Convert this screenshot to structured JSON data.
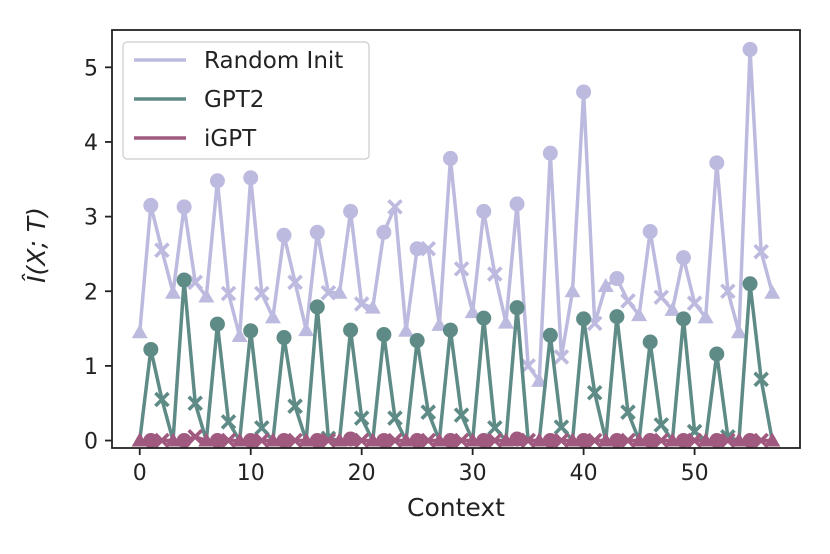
{
  "chart_data": {
    "type": "line",
    "xlabel": "Context",
    "ylabel": "Î(X; T)",
    "xlim": [
      -2.5,
      59.5
    ],
    "ylim": [
      -0.1,
      5.5
    ],
    "xticks": [
      0,
      10,
      20,
      30,
      40,
      50
    ],
    "yticks": [
      0,
      1,
      2,
      3,
      4,
      5
    ],
    "grid": false,
    "legend_position": "top-left",
    "marker_cycle": [
      "triangle",
      "circle",
      "x"
    ],
    "series": [
      {
        "name": "Random Init",
        "color": "#bdbadf",
        "values": [
          1.45,
          3.15,
          2.55,
          1.98,
          3.13,
          2.12,
          1.93,
          3.48,
          1.97,
          1.4,
          3.52,
          1.97,
          1.65,
          2.75,
          2.12,
          1.48,
          2.79,
          1.98,
          1.98,
          3.07,
          1.83,
          1.78,
          2.79,
          3.13,
          1.47,
          2.57,
          2.57,
          1.55,
          3.78,
          2.3,
          1.72,
          3.07,
          2.23,
          1.58,
          3.17,
          1.0,
          0.8,
          3.85,
          1.12,
          2.0,
          4.67,
          1.57,
          2.07,
          2.17,
          1.87,
          1.68,
          2.8,
          1.92,
          1.75,
          2.45,
          1.84,
          1.65,
          3.72,
          2.0,
          1.45,
          5.24,
          2.53,
          1.98
        ]
      },
      {
        "name": "GPT2",
        "color": "#5f8b86",
        "values": [
          0.0,
          1.22,
          0.55,
          0.0,
          2.15,
          0.5,
          0.0,
          1.56,
          0.25,
          0.0,
          1.47,
          0.17,
          0.0,
          1.38,
          0.46,
          0.0,
          1.79,
          0.03,
          0.0,
          1.48,
          0.3,
          0.0,
          1.42,
          0.3,
          0.0,
          1.34,
          0.38,
          0.0,
          1.48,
          0.34,
          0.0,
          1.64,
          0.17,
          0.0,
          1.78,
          0.0,
          0.0,
          1.41,
          0.18,
          0.0,
          1.63,
          0.64,
          0.0,
          1.66,
          0.38,
          0.0,
          1.32,
          0.21,
          0.0,
          1.63,
          0.12,
          0.0,
          1.16,
          0.05,
          0.0,
          2.1,
          0.82,
          0.0
        ]
      },
      {
        "name": "iGPT",
        "color": "#a15a7f",
        "values": [
          0.0,
          0.0,
          0.0,
          0.0,
          0.0,
          0.05,
          0.0,
          0.0,
          0.0,
          0.0,
          0.0,
          0.0,
          0.0,
          0.0,
          0.0,
          0.0,
          0.0,
          0.0,
          0.0,
          0.02,
          0.0,
          0.0,
          0.0,
          0.0,
          0.0,
          0.0,
          0.0,
          0.0,
          0.0,
          0.0,
          0.0,
          0.0,
          0.0,
          0.0,
          0.02,
          0.0,
          0.0,
          0.0,
          0.0,
          0.0,
          0.0,
          0.0,
          0.0,
          0.0,
          0.0,
          0.0,
          0.0,
          0.0,
          0.0,
          0.0,
          0.0,
          0.0,
          0.0,
          0.0,
          0.0,
          0.0,
          0.0,
          0.0
        ]
      }
    ]
  }
}
